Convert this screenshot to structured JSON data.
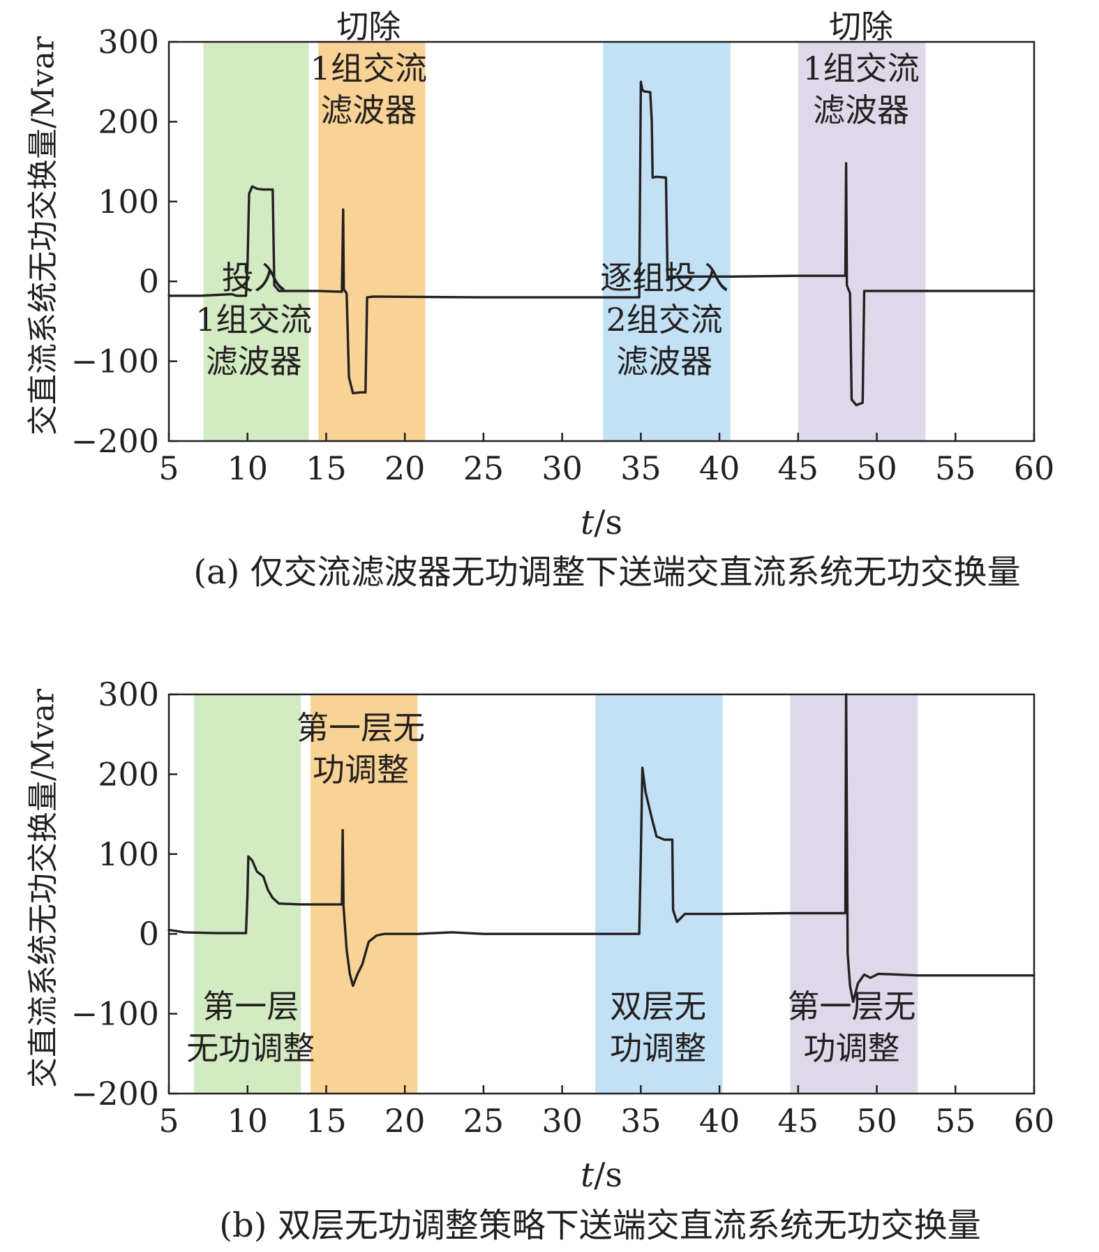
{
  "chart_data": [
    {
      "type": "line",
      "caption": "(a) 仅交流滤波器无功调整下送端交直流系统无功交换量",
      "xlabel_italic": "t",
      "xlabel_rest": "/s",
      "ylabel": "交直流系统无功交换量/Mvar",
      "xlim": [
        5,
        60
      ],
      "ylim": [
        -200,
        300
      ],
      "xticks": [
        5,
        10,
        15,
        20,
        25,
        30,
        35,
        40,
        45,
        50,
        55,
        60
      ],
      "yticks": [
        -200,
        -100,
        0,
        100,
        200,
        300
      ],
      "grid": false,
      "bands": [
        {
          "from": 7.2,
          "to": 13.9,
          "color": "#d2ebc3"
        },
        {
          "from": 14.5,
          "to": 21.3,
          "color": "#f9d395"
        },
        {
          "from": 32.6,
          "to": 40.7,
          "color": "#c3e1f4"
        },
        {
          "from": 45.0,
          "to": 53.1,
          "color": "#ded8e8"
        }
      ],
      "annotations": [
        {
          "x": 10.4,
          "y": -48,
          "lines": [
            "投入",
            "1组交流",
            "滤波器"
          ]
        },
        {
          "x": 17.7,
          "y": 267,
          "lines": [
            "切除",
            "1组交流",
            "滤波器"
          ]
        },
        {
          "x": 36.5,
          "y": -48,
          "lines": [
            "逐组投入",
            "2组交流",
            "滤波器"
          ]
        },
        {
          "x": 49.0,
          "y": 267,
          "lines": [
            "切除",
            "1组交流",
            "滤波器"
          ]
        }
      ],
      "series": [
        {
          "color": "#231f20",
          "x": [
            5,
            7,
            9,
            9.3,
            9.9,
            10.0,
            10.1,
            10.3,
            10.6,
            11.0,
            11.6,
            11.7,
            12.0,
            13.9,
            14.5,
            16.0,
            16.08,
            16.12,
            16.3,
            16.45,
            16.7,
            17.2,
            17.5,
            17.6,
            18.0,
            25,
            32.6,
            34.9,
            35.0,
            35.1,
            35.2,
            35.6,
            35.7,
            35.75,
            36.0,
            36.6,
            36.7,
            36.9,
            40.7,
            45,
            48.0,
            48.05,
            48.1,
            48.3,
            48.4,
            48.7,
            49.1,
            49.2,
            49.6,
            53.1,
            60
          ],
          "y": [
            -18,
            -18,
            -16,
            -18,
            -18,
            20,
            110,
            119,
            116,
            115,
            115,
            -5,
            -12,
            -12,
            -12,
            -13,
            90,
            -10,
            -15,
            -120,
            -140,
            -139,
            -139,
            -20,
            -19,
            -20,
            -20,
            -20,
            250,
            240,
            238,
            237,
            200,
            130,
            131,
            130,
            5,
            6,
            6,
            7,
            7,
            148,
            -5,
            -15,
            -148,
            -155,
            -152,
            -12,
            -12,
            -12,
            -12
          ]
        }
      ]
    },
    {
      "type": "line",
      "caption": "(b) 双层无功调整策略下送端交直流系统无功交换量",
      "xlabel_italic": "t",
      "xlabel_rest": "/s",
      "ylabel": "交直流系统无功交换量/Mvar",
      "xlim": [
        5,
        60
      ],
      "ylim": [
        -200,
        300
      ],
      "xticks": [
        5,
        10,
        15,
        20,
        25,
        30,
        35,
        40,
        45,
        50,
        55,
        60
      ],
      "yticks": [
        -200,
        -100,
        0,
        100,
        200,
        300
      ],
      "grid": false,
      "bands": [
        {
          "from": 6.6,
          "to": 13.4,
          "color": "#d2ebc3"
        },
        {
          "from": 14.0,
          "to": 20.8,
          "color": "#f9d395"
        },
        {
          "from": 32.1,
          "to": 40.2,
          "color": "#c3e1f4"
        },
        {
          "from": 44.5,
          "to": 52.6,
          "color": "#ded8e8"
        }
      ],
      "annotations": [
        {
          "x": 10.2,
          "y": -117,
          "lines": [
            "第一层",
            "无功调整"
          ]
        },
        {
          "x": 17.2,
          "y": 232,
          "lines": [
            "第一层无",
            "功调整"
          ]
        },
        {
          "x": 36.1,
          "y": -117,
          "lines": [
            "双层无",
            "功调整"
          ]
        },
        {
          "x": 48.4,
          "y": -117,
          "lines": [
            "第一层无",
            "功调整"
          ]
        }
      ],
      "series": [
        {
          "color": "#231f20",
          "x": [
            5,
            6,
            8,
            9.9,
            10.0,
            10.05,
            10.3,
            10.6,
            11.0,
            11.3,
            11.6,
            12.0,
            13.4,
            14.0,
            16.0,
            16.05,
            16.1,
            16.3,
            16.5,
            16.7,
            17.0,
            17.3,
            17.7,
            18.2,
            18.7,
            20.8,
            23,
            25,
            32.1,
            34.9,
            35.0,
            35.1,
            35.3,
            35.7,
            36.0,
            36.5,
            37.0,
            37.05,
            37.3,
            37.8,
            40.2,
            44.5,
            48.0,
            48.05,
            48.15,
            48.3,
            48.5,
            48.8,
            49.2,
            49.6,
            50.1,
            52.6,
            60
          ],
          "y": [
            5,
            2,
            1,
            1,
            50,
            97,
            92,
            78,
            72,
            55,
            45,
            38,
            37,
            37,
            37,
            130,
            35,
            -20,
            -50,
            -65,
            -50,
            -38,
            -10,
            -2,
            0,
            0,
            2,
            0,
            0,
            0,
            100,
            208,
            178,
            145,
            122,
            118,
            118,
            30,
            15,
            25,
            25,
            26,
            26,
            300,
            -25,
            -65,
            -85,
            -62,
            -51,
            -55,
            -50,
            -52,
            -52
          ]
        }
      ]
    }
  ]
}
